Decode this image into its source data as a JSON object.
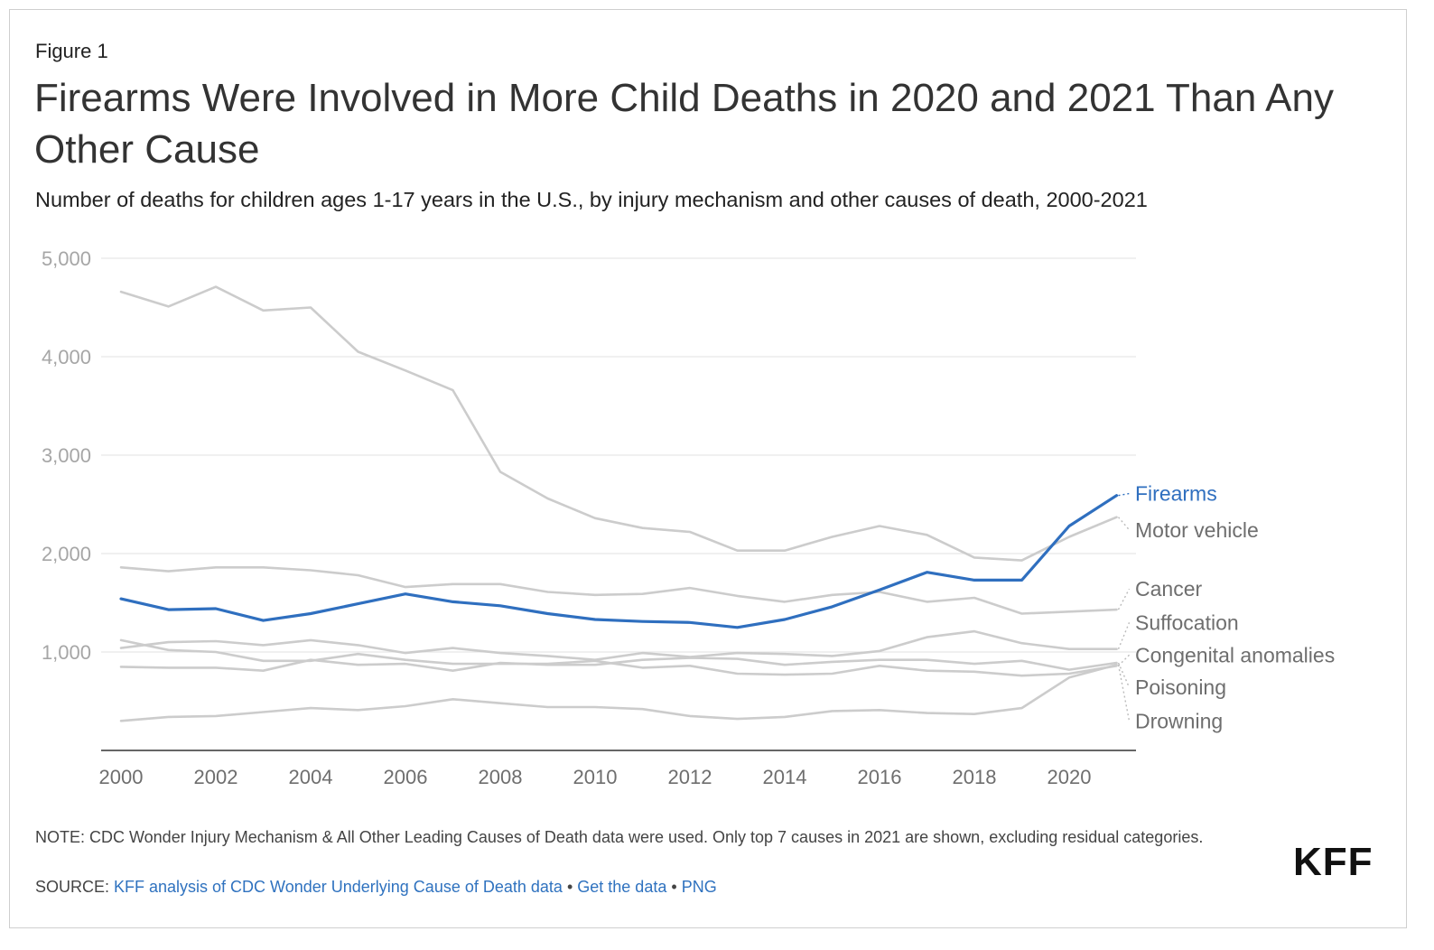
{
  "header": {
    "figure_label": "Figure 1",
    "title": "Firearms Were Involved in More Child Deaths in 2020 and 2021 Than Any Other Cause",
    "subtitle": "Number of deaths for children ages 1-17 years in the U.S., by injury mechanism and other causes of death, 2000-2021"
  },
  "footer": {
    "note": "NOTE: CDC Wonder Injury Mechanism & All Other Leading Causes of Death data were used. Only top 7 causes in 2021 are shown, excluding residual categories.",
    "source_prefix": "SOURCE: ",
    "source_link": "KFF analysis of CDC Wonder Underlying Cause of Death data",
    "separator": "•",
    "get_data_link": "Get the data",
    "png_link": "PNG",
    "logo": "KFF"
  },
  "colors": {
    "highlight": "#2f6fbf",
    "muted_line": "#cccccc",
    "muted_label": "#6e6e6e",
    "axis_text": "#a6a6a6",
    "link": "#2f72bf"
  },
  "chart_data": {
    "type": "line",
    "title": "Firearms Were Involved in More Child Deaths in 2020 and 2021 Than Any Other Cause",
    "xlabel": "",
    "ylabel": "",
    "ylim": [
      0,
      5000
    ],
    "yticks": [
      1000,
      2000,
      3000,
      4000,
      5000
    ],
    "ytick_labels": [
      "1,000",
      "2,000",
      "3,000",
      "4,000",
      "5,000"
    ],
    "xticks": [
      2000,
      2002,
      2004,
      2006,
      2008,
      2010,
      2012,
      2014,
      2016,
      2018,
      2020
    ],
    "xtick_labels": [
      "2000",
      "2002",
      "2004",
      "2006",
      "2008",
      "2010",
      "2012",
      "2014",
      "2016",
      "2018",
      "2020"
    ],
    "grid": true,
    "legend": "direct labels at line ends (right)",
    "x": [
      2000,
      2001,
      2002,
      2003,
      2004,
      2005,
      2006,
      2007,
      2008,
      2009,
      2010,
      2011,
      2012,
      2013,
      2014,
      2015,
      2016,
      2017,
      2018,
      2019,
      2020,
      2021
    ],
    "series": [
      {
        "name": "Motor vehicle",
        "highlight": false,
        "values": [
          4660,
          4510,
          4710,
          4470,
          4500,
          4050,
          3860,
          3660,
          2830,
          2560,
          2360,
          2260,
          2220,
          2030,
          2030,
          2170,
          2280,
          2190,
          1960,
          1930,
          2170,
          2370
        ]
      },
      {
        "name": "Cancer",
        "highlight": false,
        "values": [
          1860,
          1820,
          1860,
          1860,
          1830,
          1780,
          1660,
          1690,
          1690,
          1610,
          1580,
          1590,
          1650,
          1570,
          1510,
          1580,
          1610,
          1510,
          1550,
          1390,
          1410,
          1430
        ]
      },
      {
        "name": "Suffocation",
        "highlight": false,
        "values": [
          1040,
          1100,
          1110,
          1070,
          1120,
          1070,
          990,
          1040,
          990,
          960,
          920,
          990,
          950,
          990,
          980,
          960,
          1010,
          1150,
          1210,
          1090,
          1030,
          1030
        ]
      },
      {
        "name": "Congenital anomalies",
        "highlight": false,
        "values": [
          1120,
          1020,
          1000,
          910,
          910,
          980,
          920,
          880,
          880,
          880,
          910,
          840,
          860,
          780,
          770,
          780,
          860,
          810,
          800,
          760,
          780,
          860
        ]
      },
      {
        "name": "Poisoning",
        "highlight": false,
        "values": [
          850,
          840,
          840,
          810,
          920,
          870,
          880,
          810,
          890,
          870,
          870,
          920,
          940,
          930,
          870,
          900,
          920,
          920,
          880,
          910,
          820,
          890
        ]
      },
      {
        "name": "Drowning",
        "highlight": false,
        "values": [
          300,
          340,
          350,
          390,
          430,
          410,
          450,
          520,
          480,
          440,
          440,
          420,
          350,
          320,
          340,
          400,
          410,
          380,
          370,
          430,
          740,
          870
        ]
      },
      {
        "name": "Firearms",
        "highlight": true,
        "values": [
          1540,
          1430,
          1440,
          1320,
          1390,
          1490,
          1590,
          1510,
          1470,
          1390,
          1330,
          1310,
          1300,
          1250,
          1330,
          1460,
          1630,
          1810,
          1730,
          1730,
          2280,
          2590
        ]
      }
    ],
    "end_labels": [
      {
        "series": "Firearms",
        "y": 2610
      },
      {
        "series": "Motor vehicle",
        "y": 2240
      },
      {
        "series": "Cancer",
        "y": 1640
      },
      {
        "series": "Suffocation",
        "y": 1300
      },
      {
        "series": "Congenital anomalies",
        "y": 970
      },
      {
        "series": "Poisoning",
        "y": 640
      },
      {
        "series": "Drowning",
        "y": 300
      }
    ]
  }
}
